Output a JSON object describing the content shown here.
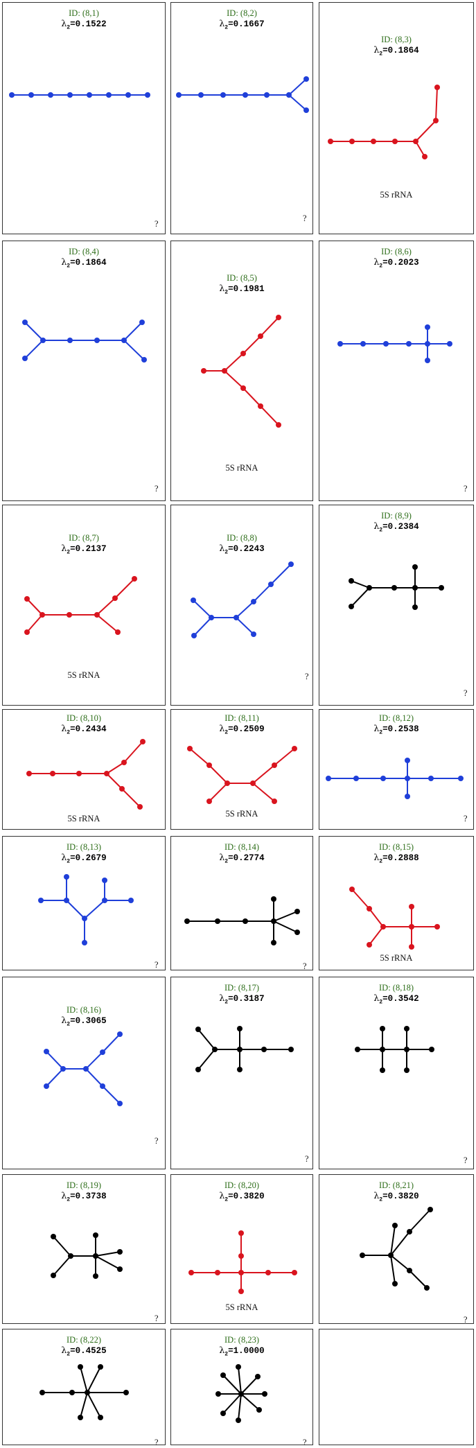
{
  "lambda_symbol": "λ",
  "lambda_subscript": "2",
  "equals": "=",
  "colors": {
    "red": "#d9141e",
    "blue": "#1f3fd9",
    "black": "#000000",
    "id_text": "#2e6e1a"
  },
  "graphs": [
    {
      "id": "ID: (8,1)",
      "lambda": "0.1522",
      "color": "blue",
      "label": "",
      "mark": "?"
    },
    {
      "id": "ID: (8,2)",
      "lambda": "0.1667",
      "color": "blue",
      "label": "",
      "mark": "?"
    },
    {
      "id": "ID: (8,3)",
      "lambda": "0.1864",
      "color": "red",
      "label": "5S rRNA",
      "mark": ""
    },
    {
      "id": "ID: (8,4)",
      "lambda": "0.1864",
      "color": "blue",
      "label": "",
      "mark": "?"
    },
    {
      "id": "ID: (8,5)",
      "lambda": "0.1981",
      "color": "red",
      "label": "5S rRNA",
      "mark": ""
    },
    {
      "id": "ID: (8,6)",
      "lambda": "0.2023",
      "color": "blue",
      "label": "",
      "mark": "?"
    },
    {
      "id": "ID: (8,7)",
      "lambda": "0.2137",
      "color": "red",
      "label": "5S rRNA",
      "mark": ""
    },
    {
      "id": "ID: (8,8)",
      "lambda": "0.2243",
      "color": "blue",
      "label": "",
      "mark": "?"
    },
    {
      "id": "ID: (8,9)",
      "lambda": "0.2384",
      "color": "black",
      "label": "",
      "mark": "?"
    },
    {
      "id": "ID: (8,10)",
      "lambda": "0.2434",
      "color": "red",
      "label": "5S rRNA",
      "mark": ""
    },
    {
      "id": "ID: (8,11)",
      "lambda": "0.2509",
      "color": "red",
      "label": "5S rRNA",
      "mark": ""
    },
    {
      "id": "ID: (8,12)",
      "lambda": "0.2538",
      "color": "blue",
      "label": "",
      "mark": "?"
    },
    {
      "id": "ID: (8,13)",
      "lambda": "0.2679",
      "color": "blue",
      "label": "",
      "mark": "?"
    },
    {
      "id": "ID: (8,14)",
      "lambda": "0.2774",
      "color": "black",
      "label": "",
      "mark": "?"
    },
    {
      "id": "ID: (8,15)",
      "lambda": "0.2888",
      "color": "red",
      "label": "5S rRNA",
      "mark": ""
    },
    {
      "id": "ID: (8,16)",
      "lambda": "0.3065",
      "color": "blue",
      "label": "",
      "mark": "?"
    },
    {
      "id": "ID: (8,17)",
      "lambda": "0.3187",
      "color": "black",
      "label": "",
      "mark": "?"
    },
    {
      "id": "ID: (8,18)",
      "lambda": "0.3542",
      "color": "black",
      "label": "",
      "mark": "?"
    },
    {
      "id": "ID: (8,19)",
      "lambda": "0.3738",
      "color": "black",
      "label": "",
      "mark": "?"
    },
    {
      "id": "ID: (8,20)",
      "lambda": "0.3820",
      "color": "red",
      "label": "5S rRNA",
      "mark": ""
    },
    {
      "id": "ID: (8,21)",
      "lambda": "0.3820",
      "color": "black",
      "label": "",
      "mark": "?"
    },
    {
      "id": "ID: (8,22)",
      "lambda": "0.4525",
      "color": "black",
      "label": "",
      "mark": "?"
    },
    {
      "id": "ID: (8,23)",
      "lambda": "1.0000",
      "color": "black",
      "label": "",
      "mark": "?"
    }
  ]
}
